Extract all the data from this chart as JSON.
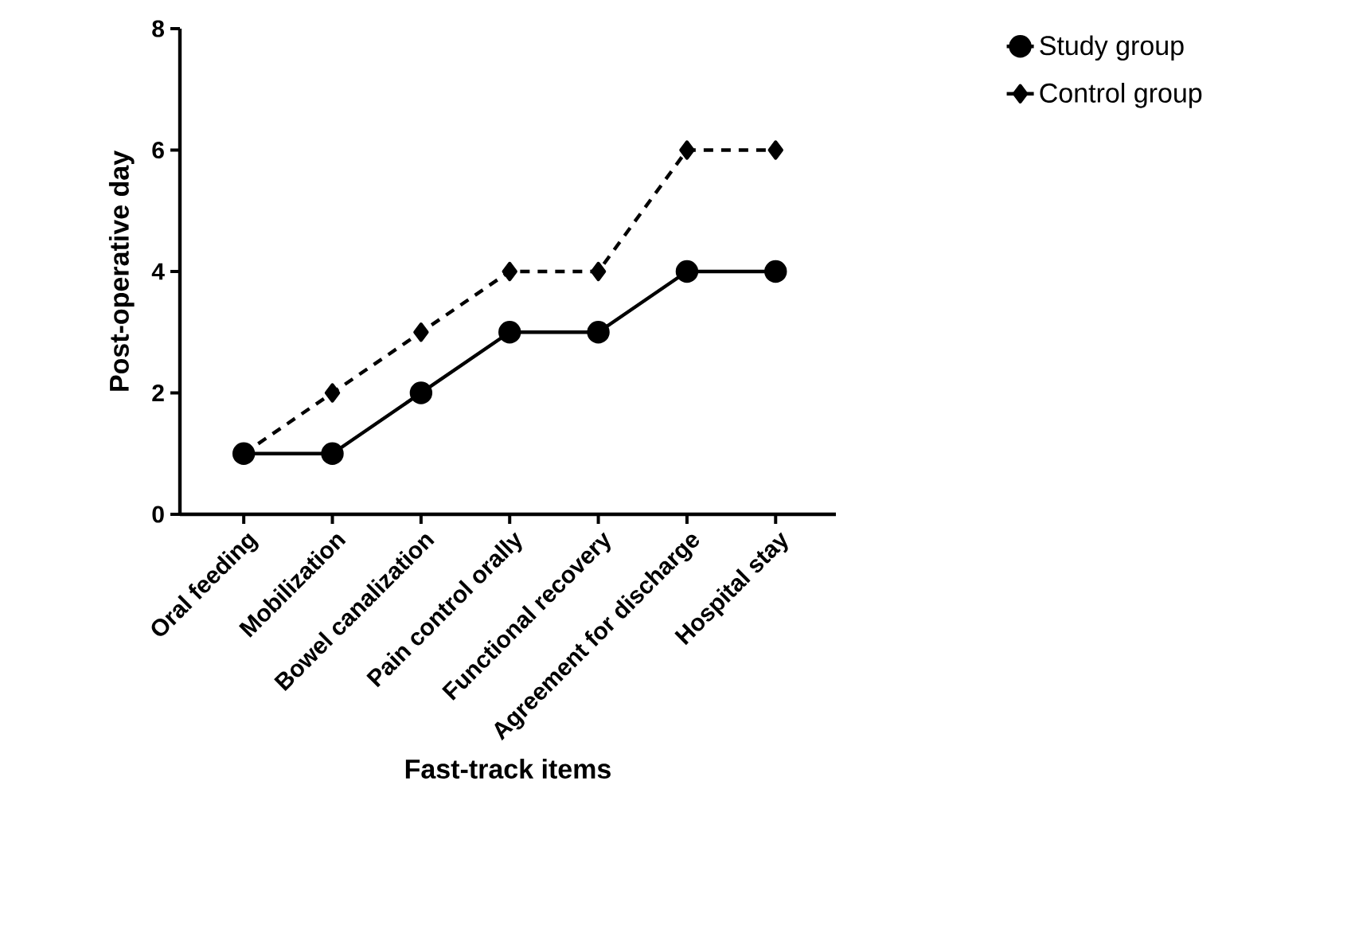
{
  "chart_data": {
    "type": "line",
    "xlabel": "Fast-track items",
    "ylabel": "Post-operative day",
    "categories": [
      "Oral feeding",
      "Mobilization",
      "Bowel canalization",
      "Pain control orally",
      "Functional recovery",
      "Agreement for discharge",
      "Hospital stay"
    ],
    "series": [
      {
        "name": "Study group",
        "color": "#000000",
        "values": [
          1,
          1,
          2,
          3,
          3,
          4,
          4
        ],
        "marker": "circle",
        "line_style": "solid"
      },
      {
        "name": "Control group",
        "color": "#000000",
        "values": [
          1,
          2,
          3,
          4,
          4,
          6,
          6
        ],
        "marker": "diamond",
        "line_style": "dashed"
      }
    ],
    "ylim": [
      0,
      8
    ],
    "yticks": [
      0,
      2,
      4,
      6,
      8
    ],
    "grid": false,
    "legend": "top right"
  }
}
